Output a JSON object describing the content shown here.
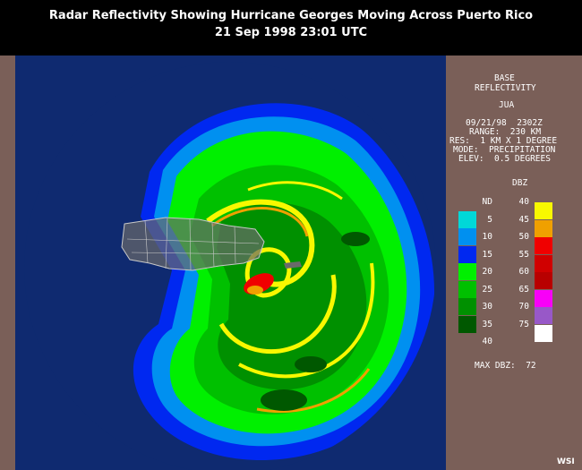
{
  "title": {
    "line1": "Radar Reflectivity Showing Hurricane Georges Moving Across Puerto Rico",
    "line2": "21 Sep 1998 23:01 UTC"
  },
  "info_panel": {
    "product_line1": "BASE",
    "product_line2": "REFLECTIVITY",
    "station": "JUA",
    "datetime": "09/21/98  2302Z",
    "range": "RANGE:  230 KM",
    "resolution": "RES:  1 KM X 1 DEGREE",
    "mode": "MODE:  PRECIPITATION",
    "elevation": "ELEV:  0.5 DEGREES"
  },
  "legend": {
    "unit": "DBZ",
    "left_column": [
      {
        "label": "ND",
        "color": null
      },
      {
        "label": "5",
        "color": "#00d8d8"
      },
      {
        "label": "10",
        "color": "#0090f0"
      },
      {
        "label": "15",
        "color": "#0028f0"
      },
      {
        "label": "20",
        "color": "#00f000"
      },
      {
        "label": "25",
        "color": "#00c000"
      },
      {
        "label": "30",
        "color": "#009000"
      },
      {
        "label": "35",
        "color": "#005800"
      },
      {
        "label": "40",
        "color": null
      }
    ],
    "right_column": [
      {
        "label": "40",
        "color": "#f8f800"
      },
      {
        "label": "45",
        "color": "#f0a000"
      },
      {
        "label": "50",
        "color": "#f00000"
      },
      {
        "label": "55",
        "color": "#d00000"
      },
      {
        "label": "60",
        "color": "#b80000"
      },
      {
        "label": "65",
        "color": "#f800f8"
      },
      {
        "label": "70",
        "color": "#9858c8"
      },
      {
        "label": "75",
        "color": "#ffffff"
      }
    ]
  },
  "max_dbz": "MAX DBZ:  72",
  "logo": "WSI",
  "colors": {
    "background": "#000000",
    "panel": "#7a5f58",
    "ocean": "#0f2a70",
    "land": "#6a6a6a"
  }
}
